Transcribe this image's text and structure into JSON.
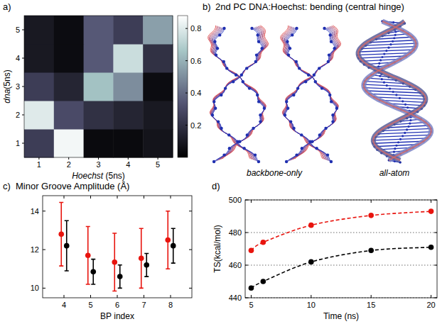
{
  "chart_data": [
    {
      "type": "heatmap",
      "panel_label": "a)",
      "xlabel": "Hoechst (5ns)",
      "ylabel": "dna(5ns)",
      "x": [
        1,
        2,
        3,
        4,
        5
      ],
      "y": [
        1,
        2,
        3,
        4,
        5
      ],
      "xlim": [
        0.5,
        5.5
      ],
      "ylim": [
        0.5,
        5.5
      ],
      "xticks": [
        1,
        2,
        3,
        4,
        5
      ],
      "yticks": [
        1,
        2,
        3,
        4,
        5
      ],
      "cells": [
        [
          0.25,
          0.85,
          0.04,
          0.04,
          0.08
        ],
        [
          0.8,
          0.3,
          0.2,
          0.15,
          0.1
        ],
        [
          0.25,
          0.15,
          0.65,
          0.5,
          0.05
        ],
        [
          0.1,
          0.05,
          0.35,
          0.75,
          0.2
        ],
        [
          0.1,
          0.05,
          0.35,
          0.25,
          0.55
        ]
      ],
      "colorbar_range": [
        0,
        0.88
      ],
      "colorbar_ticks": [
        0.2,
        0.4,
        0.6,
        0.8
      ]
    },
    {
      "type": "diagram",
      "panel_label": "b)",
      "title": "2nd PC DNA:Hoechst: bending (central hinge)",
      "labels": [
        "backbone-only",
        "all-atom"
      ]
    },
    {
      "type": "scatter",
      "panel_label": "c)",
      "title": "Minor Groove Amplitude (Å)",
      "xlabel": "BP index",
      "xlim": [
        3.2,
        8.8
      ],
      "ylim": [
        9.5,
        14.8
      ],
      "xticks": [
        4,
        5,
        6,
        7,
        8
      ],
      "yticks": [
        10,
        12,
        14
      ],
      "series": [
        {
          "color": "#e8140e",
          "marker": "circle",
          "x": [
            3.9,
            4.9,
            5.9,
            6.9,
            7.9
          ],
          "values": [
            12.8,
            11.7,
            11.35,
            11.55,
            12.5
          ],
          "errors": [
            1.65,
            1.5,
            1.5,
            1.55,
            1.5
          ]
        },
        {
          "color": "#000000",
          "marker": "circle",
          "x": [
            4.1,
            5.1,
            6.1,
            7.1,
            8.1
          ],
          "values": [
            12.2,
            10.85,
            10.6,
            11.2,
            12.2
          ],
          "errors": [
            1.3,
            0.65,
            0.6,
            0.6,
            0.9
          ]
        }
      ]
    },
    {
      "type": "line",
      "panel_label": "d)",
      "xlabel": "Time (ns)",
      "ylabel": "TS(kcal/mol)",
      "x": [
        5,
        6,
        10,
        15,
        20
      ],
      "xlim": [
        4.5,
        20.5
      ],
      "ylim": [
        440,
        500
      ],
      "xticks": [
        5,
        10,
        15,
        20
      ],
      "yticks": [
        440,
        460,
        480,
        500
      ],
      "grid": true,
      "series": [
        {
          "color": "#e8140e",
          "marker": "circle",
          "line_style": "dashed",
          "values": [
            469,
            474,
            484.5,
            490.5,
            493
          ]
        },
        {
          "color": "#000000",
          "marker": "circle",
          "line_style": "dashed",
          "values": [
            446,
            450,
            462,
            469,
            471
          ]
        }
      ]
    }
  ]
}
